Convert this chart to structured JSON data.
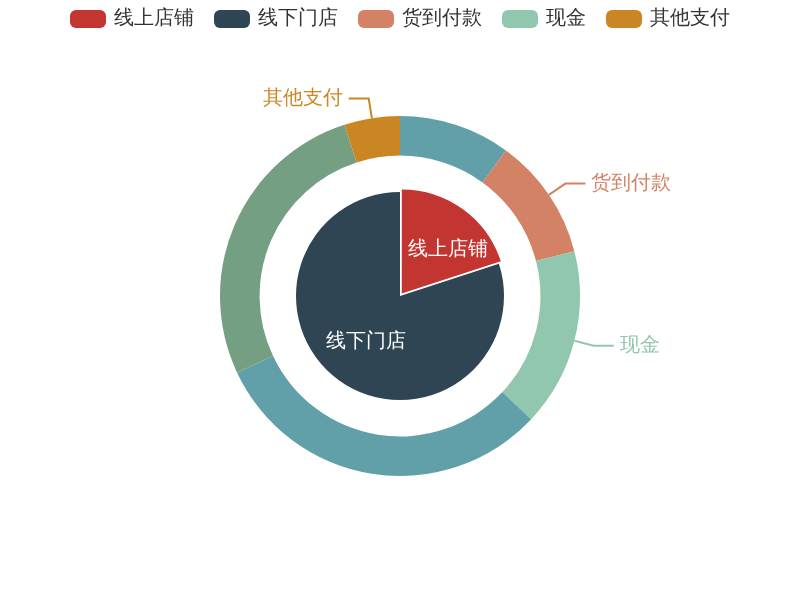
{
  "chart_data": [
    {
      "type": "pie",
      "categories": [
        "线上店铺",
        "线下门店"
      ],
      "values": [
        20,
        80
      ],
      "colors": [
        "#c23531",
        "#2f4554"
      ],
      "legend": "top"
    },
    {
      "type": "donut",
      "categories": [
        null,
        "货到付款",
        "现金",
        null,
        null,
        "其他支付"
      ],
      "values": [
        10,
        11,
        16,
        31,
        27,
        5
      ],
      "colors": [
        "#61a0a8",
        "#d48265",
        "#91c7ae",
        "#61a0a8",
        "#749f83",
        "#ca8622"
      ],
      "legend": "top"
    }
  ]
}
